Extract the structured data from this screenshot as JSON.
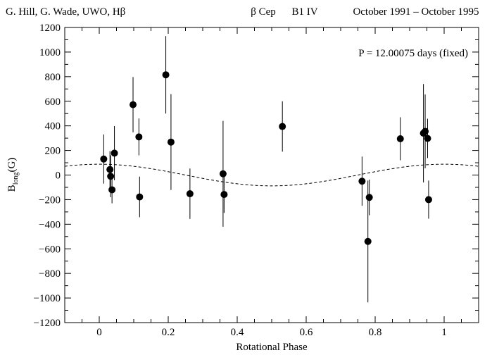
{
  "header": {
    "left": "G. Hill, G. Wade, UWO, Hβ",
    "star": "β Cep",
    "spectral_type": "B1 IV",
    "dates": "October 1991 – October 1995"
  },
  "chart_data": {
    "type": "scatter",
    "title": "",
    "xlabel": "Rotational Phase",
    "ylabel_main": "B",
    "ylabel_sub": "long",
    "ylabel_unit": "(G)",
    "annotation": "P = 12.00075 days  (fixed)",
    "xlim": [
      -0.1,
      1.1
    ],
    "ylim": [
      -1200,
      1200
    ],
    "x_ticks": [
      0,
      0.2,
      0.4,
      0.6,
      0.8,
      1
    ],
    "x_tick_labels": [
      "0",
      "0.2",
      "0.4",
      "0.6",
      "0.8",
      "1"
    ],
    "y_ticks": [
      1200,
      1000,
      800,
      600,
      400,
      200,
      0,
      -200,
      -400,
      -600,
      -800,
      -1000,
      -1200
    ],
    "y_tick_labels": [
      "1200",
      "1000",
      "800",
      "600",
      "400",
      "200",
      "0",
      "−200",
      "−400",
      "−600",
      "−800",
      "−1000",
      "−1200"
    ],
    "grid": false,
    "model_curve": {
      "style": "dashed",
      "amplitude": 88,
      "offset": 0,
      "phase_of_max": 0
    },
    "points": [
      {
        "x": 0.013,
        "y": 130,
        "err": 200
      },
      {
        "x": 0.031,
        "y": 45,
        "err": 150
      },
      {
        "x": 0.033,
        "y": -10,
        "err": 170
      },
      {
        "x": 0.037,
        "y": -120,
        "err": 110
      },
      {
        "x": 0.044,
        "y": 178,
        "err": 220
      },
      {
        "x": 0.098,
        "y": 572,
        "err": 225
      },
      {
        "x": 0.115,
        "y": 310,
        "err": 150
      },
      {
        "x": 0.117,
        "y": -178,
        "err": 165
      },
      {
        "x": 0.193,
        "y": 815,
        "err": 315
      },
      {
        "x": 0.208,
        "y": 268,
        "err": 390
      },
      {
        "x": 0.263,
        "y": -152,
        "err": 205
      },
      {
        "x": 0.359,
        "y": 10,
        "err": 430
      },
      {
        "x": 0.362,
        "y": -158,
        "err": 150
      },
      {
        "x": 0.531,
        "y": 395,
        "err": 205
      },
      {
        "x": 0.762,
        "y": -50,
        "err": 200
      },
      {
        "x": 0.779,
        "y": -540,
        "err": 495
      },
      {
        "x": 0.783,
        "y": -182,
        "err": 145
      },
      {
        "x": 0.873,
        "y": 295,
        "err": 175
      },
      {
        "x": 0.94,
        "y": 340,
        "err": 400
      },
      {
        "x": 0.945,
        "y": 355,
        "err": 300
      },
      {
        "x": 0.952,
        "y": 298,
        "err": 160
      },
      {
        "x": 0.955,
        "y": -200,
        "err": 155
      }
    ]
  }
}
